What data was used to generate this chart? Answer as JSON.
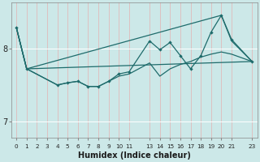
{
  "xlabel": "Humidex (Indice chaleur)",
  "bg_color": "#cce8e8",
  "grid_color": "#b0d4d4",
  "line_color": "#1e6b6b",
  "xlim": [
    -0.5,
    23.5
  ],
  "ylim": [
    6.78,
    8.62
  ],
  "yticks": [
    7,
    8
  ],
  "xticks": [
    0,
    1,
    2,
    3,
    4,
    5,
    6,
    7,
    8,
    9,
    10,
    11,
    13,
    14,
    15,
    16,
    17,
    18,
    19,
    20,
    21,
    23
  ],
  "xtick_labels": [
    "0",
    "1",
    "2",
    "3",
    "4",
    "5",
    "6",
    "7",
    "8",
    "9",
    "10",
    "11",
    "13",
    "14",
    "15",
    "16",
    "17",
    "18",
    "19",
    "20",
    "21",
    "23"
  ],
  "line1_x": [
    0,
    1,
    23
  ],
  "line1_y": [
    8.28,
    7.72,
    7.82
  ],
  "line2_x": [
    0,
    1,
    4,
    5,
    6,
    7,
    8,
    9,
    10,
    11,
    13,
    14,
    15,
    16,
    17,
    18,
    19,
    20,
    21,
    23
  ],
  "line2_y": [
    8.28,
    7.72,
    7.5,
    7.53,
    7.55,
    7.48,
    7.48,
    7.55,
    7.62,
    7.65,
    7.8,
    7.62,
    7.72,
    7.78,
    7.82,
    7.88,
    7.92,
    7.95,
    7.92,
    7.82
  ],
  "line3_x": [
    0,
    1,
    4,
    5,
    6,
    7,
    8,
    9,
    10,
    11,
    13,
    14,
    15,
    16,
    17,
    18,
    19,
    20,
    21,
    23
  ],
  "line3_y": [
    8.28,
    7.72,
    7.5,
    7.53,
    7.55,
    7.48,
    7.48,
    7.55,
    7.65,
    7.68,
    8.1,
    7.98,
    8.08,
    7.9,
    7.72,
    7.9,
    8.22,
    8.45,
    8.12,
    7.82
  ],
  "line3_markers": true,
  "line4_x": [
    0,
    1,
    20,
    21,
    23
  ],
  "line4_y": [
    8.28,
    7.72,
    8.45,
    8.1,
    7.82
  ]
}
